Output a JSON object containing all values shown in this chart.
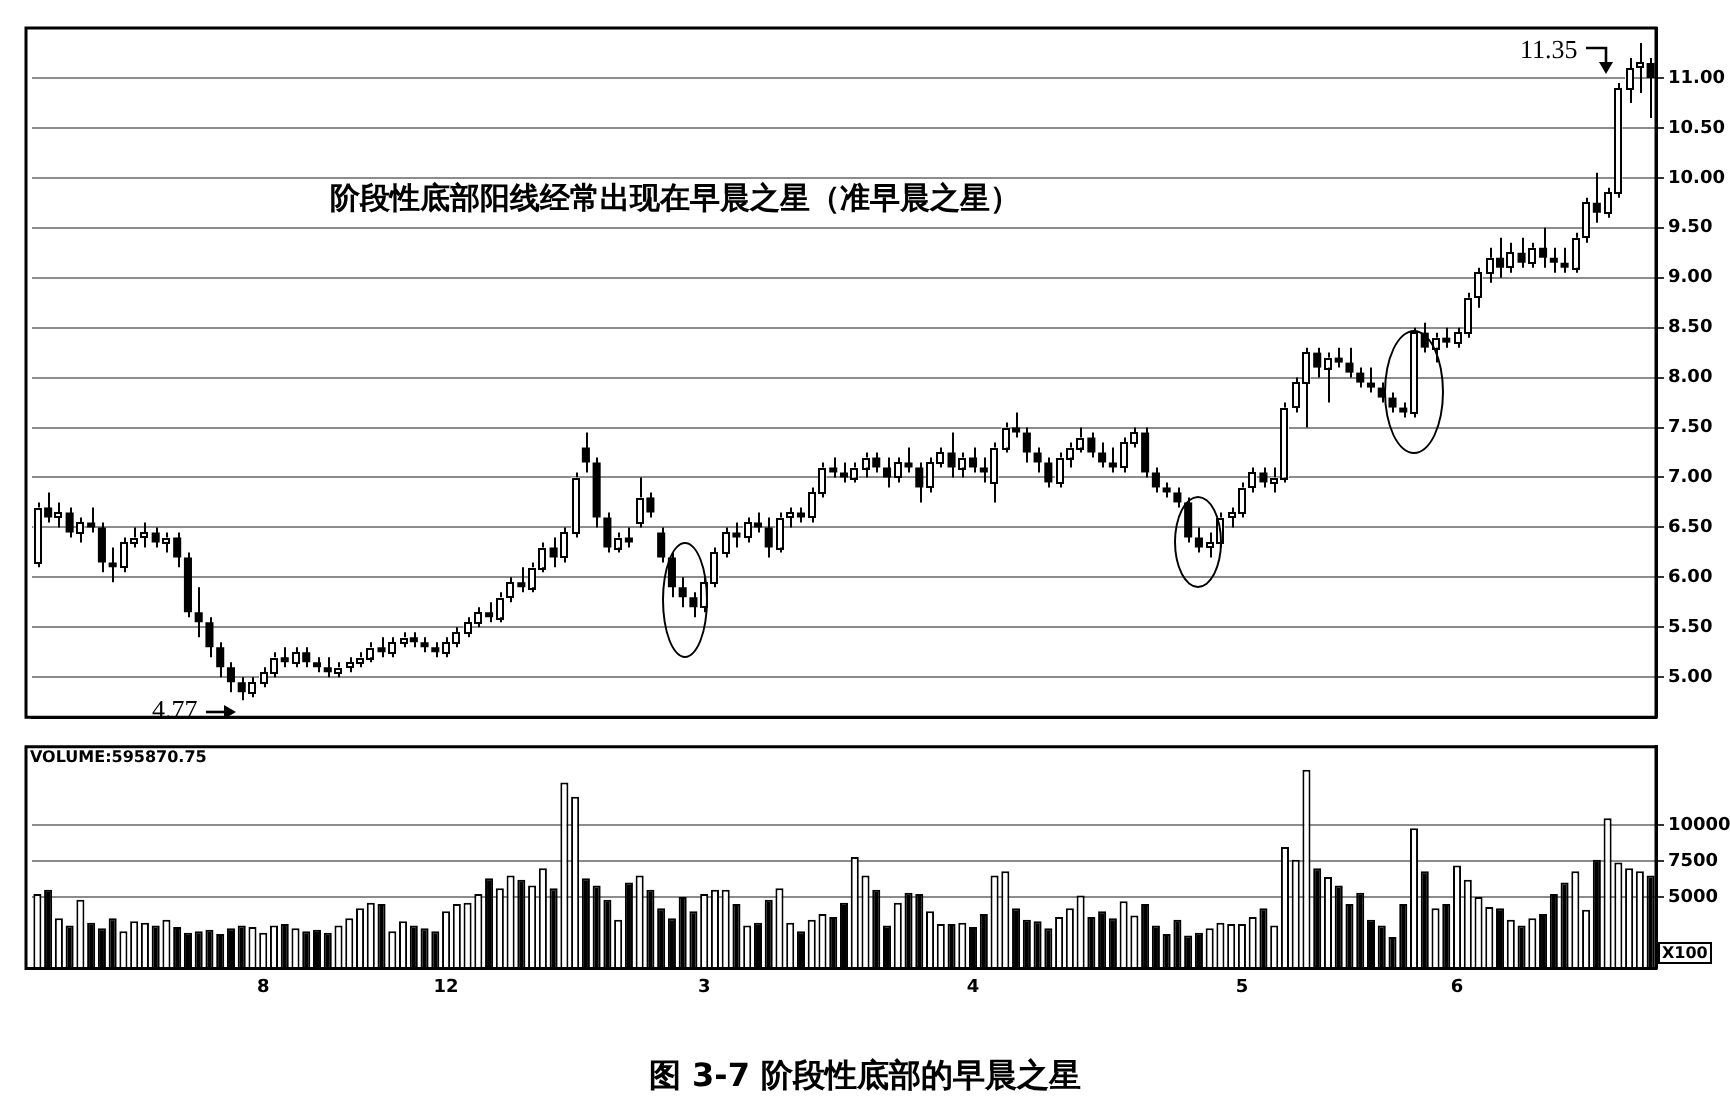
{
  "chart_data": [
    {
      "type": "candlestick",
      "title": "图 3-7  阶段性底部的早晨之星",
      "annotations": [
        "阶段性底部阳线经常出现在早晨之星（准早晨之星）",
        "4.77",
        "11.35"
      ],
      "categories": [
        null,
        null,
        null,
        null,
        null,
        null,
        null,
        null,
        null,
        null,
        null,
        null,
        null,
        null,
        null,
        null,
        null,
        null,
        null,
        null,
        null,
        "8",
        null,
        null,
        null,
        null,
        null,
        null,
        null,
        null,
        null,
        null,
        null,
        null,
        null,
        null,
        null,
        null,
        "12",
        null,
        null,
        null,
        null,
        null,
        null,
        null,
        null,
        null,
        null,
        null,
        null,
        null,
        null,
        null,
        null,
        null,
        null,
        null,
        null,
        null,
        null,
        null,
        "3",
        null,
        null,
        null,
        null,
        null,
        null,
        null,
        null,
        null,
        null,
        null,
        null,
        null,
        null,
        null,
        null,
        null,
        null,
        null,
        null,
        null,
        null,
        null,
        null,
        "4",
        null,
        null,
        null,
        null,
        null,
        null,
        null,
        null,
        null,
        null,
        null,
        null,
        null,
        null,
        null,
        null,
        null,
        null,
        null,
        null,
        null,
        null,
        null,
        null,
        "5",
        null,
        null,
        null,
        null,
        null,
        null,
        null,
        null,
        null,
        null,
        null,
        null,
        null,
        null,
        null,
        null,
        null,
        null,
        null,
        "6",
        null,
        null,
        null,
        null,
        null,
        null,
        null,
        null,
        null,
        null,
        null,
        null,
        null,
        null,
        null,
        null,
        null,
        null
      ],
      "ohlc": [
        [
          6.15,
          6.75,
          6.1,
          6.7
        ],
        [
          6.7,
          6.85,
          6.55,
          6.6
        ],
        [
          6.6,
          6.75,
          6.5,
          6.65
        ],
        [
          6.65,
          6.7,
          6.4,
          6.45
        ],
        [
          6.45,
          6.6,
          6.35,
          6.55
        ],
        [
          6.55,
          6.7,
          6.45,
          6.5
        ],
        [
          6.5,
          6.55,
          6.05,
          6.15
        ],
        [
          6.15,
          6.3,
          5.95,
          6.1
        ],
        [
          6.1,
          6.4,
          6.05,
          6.35
        ],
        [
          6.35,
          6.5,
          6.3,
          6.4
        ],
        [
          6.4,
          6.55,
          6.3,
          6.45
        ],
        [
          6.45,
          6.5,
          6.3,
          6.35
        ],
        [
          6.35,
          6.45,
          6.25,
          6.4
        ],
        [
          6.4,
          6.45,
          6.1,
          6.2
        ],
        [
          6.2,
          6.25,
          5.6,
          5.65
        ],
        [
          5.65,
          5.9,
          5.4,
          5.55
        ],
        [
          5.55,
          5.6,
          5.2,
          5.3
        ],
        [
          5.3,
          5.35,
          5.0,
          5.1
        ],
        [
          5.1,
          5.15,
          4.85,
          4.95
        ],
        [
          4.95,
          5.0,
          4.77,
          4.85
        ],
        [
          4.85,
          5.0,
          4.8,
          4.95
        ],
        [
          4.95,
          5.1,
          4.9,
          5.05
        ],
        [
          5.05,
          5.25,
          5.0,
          5.2
        ],
        [
          5.2,
          5.3,
          5.1,
          5.15
        ],
        [
          5.15,
          5.3,
          5.1,
          5.25
        ],
        [
          5.25,
          5.3,
          5.1,
          5.15
        ],
        [
          5.15,
          5.2,
          5.05,
          5.1
        ],
        [
          5.1,
          5.2,
          5.0,
          5.05
        ],
        [
          5.05,
          5.15,
          5.0,
          5.1
        ],
        [
          5.1,
          5.2,
          5.05,
          5.15
        ],
        [
          5.15,
          5.25,
          5.1,
          5.2
        ],
        [
          5.2,
          5.35,
          5.15,
          5.3
        ],
        [
          5.3,
          5.4,
          5.2,
          5.25
        ],
        [
          5.25,
          5.4,
          5.2,
          5.35
        ],
        [
          5.35,
          5.45,
          5.3,
          5.4
        ],
        [
          5.4,
          5.45,
          5.3,
          5.35
        ],
        [
          5.35,
          5.4,
          5.25,
          5.3
        ],
        [
          5.3,
          5.35,
          5.2,
          5.25
        ],
        [
          5.25,
          5.4,
          5.2,
          5.35
        ],
        [
          5.35,
          5.5,
          5.3,
          5.45
        ],
        [
          5.45,
          5.6,
          5.4,
          5.55
        ],
        [
          5.55,
          5.7,
          5.5,
          5.65
        ],
        [
          5.65,
          5.75,
          5.55,
          5.6
        ],
        [
          5.6,
          5.85,
          5.55,
          5.8
        ],
        [
          5.8,
          6.0,
          5.75,
          5.95
        ],
        [
          5.95,
          6.1,
          5.85,
          5.9
        ],
        [
          5.9,
          6.15,
          5.85,
          6.1
        ],
        [
          6.1,
          6.35,
          6.05,
          6.3
        ],
        [
          6.3,
          6.4,
          6.1,
          6.2
        ],
        [
          6.2,
          6.5,
          6.15,
          6.45
        ],
        [
          6.45,
          7.05,
          6.4,
          7.0
        ],
        [
          7.3,
          7.45,
          7.05,
          7.15
        ],
        [
          7.15,
          7.2,
          6.5,
          6.6
        ],
        [
          6.6,
          6.65,
          6.25,
          6.3
        ],
        [
          6.3,
          6.45,
          6.25,
          6.4
        ],
        [
          6.4,
          6.5,
          6.3,
          6.35
        ],
        [
          6.55,
          7.0,
          6.5,
          6.8
        ],
        [
          6.8,
          6.85,
          6.6,
          6.65
        ],
        [
          6.45,
          6.5,
          6.15,
          6.2
        ],
        [
          6.2,
          6.25,
          5.8,
          5.9
        ],
        [
          5.9,
          6.0,
          5.7,
          5.8
        ],
        [
          5.8,
          5.85,
          5.6,
          5.7
        ],
        [
          5.7,
          6.0,
          5.65,
          5.95
        ],
        [
          5.95,
          6.3,
          5.9,
          6.25
        ],
        [
          6.25,
          6.5,
          6.2,
          6.45
        ],
        [
          6.45,
          6.55,
          6.3,
          6.4
        ],
        [
          6.4,
          6.6,
          6.35,
          6.55
        ],
        [
          6.55,
          6.65,
          6.45,
          6.5
        ],
        [
          6.5,
          6.6,
          6.2,
          6.3
        ],
        [
          6.3,
          6.65,
          6.25,
          6.6
        ],
        [
          6.6,
          6.7,
          6.5,
          6.65
        ],
        [
          6.65,
          6.7,
          6.55,
          6.6
        ],
        [
          6.6,
          6.9,
          6.55,
          6.85
        ],
        [
          6.85,
          7.15,
          6.8,
          7.1
        ],
        [
          7.1,
          7.2,
          7.0,
          7.05
        ],
        [
          7.05,
          7.15,
          6.95,
          7.0
        ],
        [
          7.0,
          7.15,
          6.95,
          7.1
        ],
        [
          7.1,
          7.25,
          7.0,
          7.2
        ],
        [
          7.2,
          7.25,
          7.05,
          7.1
        ],
        [
          7.1,
          7.2,
          6.9,
          7.0
        ],
        [
          7.0,
          7.2,
          6.95,
          7.15
        ],
        [
          7.15,
          7.3,
          7.05,
          7.1
        ],
        [
          7.1,
          7.15,
          6.75,
          6.9
        ],
        [
          6.9,
          7.2,
          6.85,
          7.15
        ],
        [
          7.15,
          7.3,
          7.1,
          7.25
        ],
        [
          7.25,
          7.45,
          7.0,
          7.1
        ],
        [
          7.1,
          7.25,
          7.0,
          7.2
        ],
        [
          7.2,
          7.3,
          7.05,
          7.1
        ],
        [
          7.1,
          7.2,
          6.95,
          7.05
        ],
        [
          6.95,
          7.35,
          6.75,
          7.3
        ],
        [
          7.3,
          7.55,
          7.25,
          7.5
        ],
        [
          7.5,
          7.65,
          7.4,
          7.45
        ],
        [
          7.45,
          7.5,
          7.15,
          7.25
        ],
        [
          7.25,
          7.3,
          7.05,
          7.15
        ],
        [
          7.15,
          7.2,
          6.9,
          6.95
        ],
        [
          6.95,
          7.25,
          6.9,
          7.2
        ],
        [
          7.2,
          7.35,
          7.1,
          7.3
        ],
        [
          7.3,
          7.5,
          7.25,
          7.4
        ],
        [
          7.4,
          7.45,
          7.2,
          7.25
        ],
        [
          7.25,
          7.35,
          7.1,
          7.15
        ],
        [
          7.15,
          7.3,
          7.05,
          7.1
        ],
        [
          7.1,
          7.4,
          7.05,
          7.35
        ],
        [
          7.35,
          7.5,
          7.3,
          7.45
        ],
        [
          7.45,
          7.5,
          7.0,
          7.05
        ],
        [
          7.05,
          7.1,
          6.85,
          6.9
        ],
        [
          6.9,
          6.95,
          6.8,
          6.85
        ],
        [
          6.85,
          6.9,
          6.7,
          6.75
        ],
        [
          6.75,
          6.8,
          6.35,
          6.4
        ],
        [
          6.4,
          6.5,
          6.25,
          6.3
        ],
        [
          6.3,
          6.45,
          6.2,
          6.35
        ],
        [
          6.35,
          6.65,
          6.3,
          6.6
        ],
        [
          6.6,
          6.7,
          6.5,
          6.65
        ],
        [
          6.65,
          6.95,
          6.6,
          6.9
        ],
        [
          6.9,
          7.1,
          6.85,
          7.05
        ],
        [
          7.05,
          7.1,
          6.9,
          6.95
        ],
        [
          6.95,
          7.1,
          6.85,
          7.0
        ],
        [
          7.0,
          7.75,
          6.95,
          7.7
        ],
        [
          7.7,
          8.0,
          7.65,
          7.95
        ],
        [
          7.95,
          8.3,
          7.5,
          8.25
        ],
        [
          8.25,
          8.3,
          8.0,
          8.1
        ],
        [
          8.1,
          8.25,
          7.75,
          8.2
        ],
        [
          8.2,
          8.3,
          8.1,
          8.15
        ],
        [
          8.15,
          8.3,
          8.0,
          8.05
        ],
        [
          8.05,
          8.1,
          7.9,
          7.95
        ],
        [
          7.95,
          8.1,
          7.85,
          7.9
        ],
        [
          7.9,
          7.95,
          7.75,
          7.8
        ],
        [
          7.8,
          7.85,
          7.65,
          7.7
        ],
        [
          7.7,
          7.75,
          7.6,
          7.65
        ],
        [
          7.65,
          8.5,
          7.6,
          8.45
        ],
        [
          8.45,
          8.55,
          8.25,
          8.3
        ],
        [
          8.3,
          8.45,
          8.15,
          8.4
        ],
        [
          8.4,
          8.5,
          8.3,
          8.35
        ],
        [
          8.35,
          8.5,
          8.3,
          8.45
        ],
        [
          8.45,
          8.85,
          8.4,
          8.8
        ],
        [
          8.8,
          9.1,
          8.7,
          9.05
        ],
        [
          9.05,
          9.3,
          8.95,
          9.2
        ],
        [
          9.2,
          9.4,
          9.0,
          9.1
        ],
        [
          9.1,
          9.35,
          9.05,
          9.25
        ],
        [
          9.25,
          9.4,
          9.1,
          9.15
        ],
        [
          9.15,
          9.35,
          9.1,
          9.3
        ],
        [
          9.3,
          9.5,
          9.1,
          9.2
        ],
        [
          9.2,
          9.3,
          9.05,
          9.15
        ],
        [
          9.15,
          9.3,
          9.05,
          9.1
        ],
        [
          9.1,
          9.45,
          9.05,
          9.4
        ],
        [
          9.4,
          9.8,
          9.35,
          9.75
        ],
        [
          9.75,
          10.05,
          9.55,
          9.65
        ],
        [
          9.65,
          9.9,
          9.6,
          9.85
        ],
        [
          9.85,
          10.95,
          9.8,
          10.9
        ],
        [
          10.9,
          11.2,
          10.75,
          11.1
        ],
        [
          11.1,
          11.35,
          10.85,
          11.15
        ],
        [
          11.15,
          11.2,
          10.6,
          11.0
        ]
      ],
      "ylim": [
        4.6,
        11.5
      ],
      "yticks": [
        {
          "value": 5,
          "label": "5.00"
        },
        {
          "value": 5.5,
          "label": "5.50"
        },
        {
          "value": 6,
          "label": "6.00"
        },
        {
          "value": 6.5,
          "label": "6.50"
        },
        {
          "value": 7,
          "label": "7.00"
        },
        {
          "value": 7.5,
          "label": "7.50"
        },
        {
          "value": 8,
          "label": "8.00"
        },
        {
          "value": 8.5,
          "label": "8.50"
        },
        {
          "value": 9,
          "label": "9.00"
        },
        {
          "value": 9.5,
          "label": "9.50"
        },
        {
          "value": 10,
          "label": "10.00"
        },
        {
          "value": 10.5,
          "label": "10.50"
        },
        {
          "value": 11,
          "label": "11.00"
        }
      ],
      "grid": "y",
      "tick_labels": "y"
    },
    {
      "type": "bar",
      "annotations": [
        "VOLUME:595870.75",
        "X100"
      ],
      "categories": [
        null,
        null,
        null,
        null,
        null,
        null,
        null,
        null,
        null,
        null,
        null,
        null,
        null,
        null,
        null,
        null,
        null,
        null,
        null,
        null,
        null,
        "8",
        null,
        null,
        null,
        null,
        null,
        null,
        null,
        null,
        null,
        null,
        null,
        null,
        null,
        null,
        null,
        null,
        "12",
        null,
        null,
        null,
        null,
        null,
        null,
        null,
        null,
        null,
        null,
        null,
        null,
        null,
        null,
        null,
        null,
        null,
        null,
        null,
        null,
        null,
        null,
        null,
        "3",
        null,
        null,
        null,
        null,
        null,
        null,
        null,
        null,
        null,
        null,
        null,
        null,
        null,
        null,
        null,
        null,
        null,
        null,
        null,
        null,
        null,
        null,
        null,
        null,
        "4",
        null,
        null,
        null,
        null,
        null,
        null,
        null,
        null,
        null,
        null,
        null,
        null,
        null,
        null,
        null,
        null,
        null,
        null,
        null,
        null,
        null,
        null,
        null,
        null,
        "5",
        null,
        null,
        null,
        null,
        null,
        null,
        null,
        null,
        null,
        null,
        null,
        null,
        null,
        null,
        null,
        null,
        null,
        null,
        null,
        "6",
        null,
        null,
        null,
        null,
        null,
        null,
        null,
        null,
        null,
        null,
        null,
        null,
        null,
        null,
        null,
        null,
        null,
        null
      ],
      "values": [
        5200,
        5500,
        3500,
        3000,
        4800,
        3200,
        2800,
        3500,
        2600,
        3300,
        3200,
        3000,
        3400,
        2900,
        2500,
        2600,
        2700,
        2400,
        2800,
        3000,
        2900,
        2500,
        3000,
        3100,
        2800,
        2600,
        2700,
        2500,
        3000,
        3500,
        4200,
        4600,
        4500,
        2600,
        3300,
        3000,
        2800,
        2600,
        4000,
        4500,
        4600,
        5200,
        6300,
        5600,
        6500,
        6200,
        5800,
        7000,
        5600,
        13000,
        12000,
        6300,
        5800,
        4800,
        3400,
        6000,
        6500,
        5500,
        4200,
        3500,
        5000,
        4000,
        5200,
        5500,
        5500,
        4500,
        3000,
        3200,
        4800,
        5600,
        3200,
        2600,
        3400,
        3800,
        3600,
        4600,
        7800,
        6500,
        5500,
        3000,
        4600,
        5300,
        5200,
        4000,
        3100,
        3100,
        3200,
        2900,
        3800,
        6500,
        6800,
        4200,
        3400,
        3300,
        2800,
        3600,
        4200,
        5100,
        3600,
        4000,
        3500,
        4700,
        3700,
        4500,
        3000,
        2400,
        3400,
        2300,
        2500,
        2800,
        3200,
        3100,
        3100,
        3600,
        4200,
        3000,
        8500,
        7600,
        13900,
        7000,
        6400,
        5800,
        4500,
        5300,
        3400,
        3000,
        2200,
        4500,
        9800,
        6800,
        4200,
        4500,
        7200,
        6200,
        5000,
        4300,
        4200,
        3400,
        3000,
        3500,
        3800,
        5200,
        6000,
        6800,
        4100,
        7600,
        10500,
        7400,
        7000,
        6800,
        6500
      ],
      "colors": [
        "#ffffff",
        "#000000",
        "#ffffff",
        "#000000",
        "#ffffff",
        "#000000",
        "#000000",
        "#000000",
        "#ffffff",
        "#ffffff",
        "#ffffff",
        "#000000",
        "#ffffff",
        "#000000",
        "#000000",
        "#000000",
        "#000000",
        "#000000",
        "#000000",
        "#000000",
        "#ffffff",
        "#ffffff",
        "#ffffff",
        "#000000",
        "#ffffff",
        "#000000",
        "#000000",
        "#000000",
        "#ffffff",
        "#ffffff",
        "#ffffff",
        "#ffffff",
        "#000000",
        "#ffffff",
        "#ffffff",
        "#000000",
        "#000000",
        "#000000",
        "#ffffff",
        "#ffffff",
        "#ffffff",
        "#ffffff",
        "#000000",
        "#ffffff",
        "#ffffff",
        "#000000",
        "#ffffff",
        "#ffffff",
        "#000000",
        "#ffffff",
        "#ffffff",
        "#000000",
        "#000000",
        "#000000",
        "#ffffff",
        "#000000",
        "#ffffff",
        "#000000",
        "#000000",
        "#000000",
        "#000000",
        "#000000",
        "#ffffff",
        "#ffffff",
        "#ffffff",
        "#000000",
        "#ffffff",
        "#000000",
        "#000000",
        "#ffffff",
        "#ffffff",
        "#000000",
        "#ffffff",
        "#ffffff",
        "#000000",
        "#000000",
        "#ffffff",
        "#ffffff",
        "#000000",
        "#000000",
        "#ffffff",
        "#000000",
        "#000000",
        "#ffffff",
        "#ffffff",
        "#000000",
        "#ffffff",
        "#000000",
        "#000000",
        "#ffffff",
        "#ffffff",
        "#000000",
        "#000000",
        "#000000",
        "#000000",
        "#ffffff",
        "#ffffff",
        "#ffffff",
        "#000000",
        "#000000",
        "#000000",
        "#ffffff",
        "#ffffff",
        "#000000",
        "#000000",
        "#000000",
        "#000000",
        "#000000",
        "#000000",
        "#ffffff",
        "#ffffff",
        "#ffffff",
        "#ffffff",
        "#ffffff",
        "#000000",
        "#ffffff",
        "#ffffff",
        "#ffffff",
        "#ffffff",
        "#000000",
        "#ffffff",
        "#000000",
        "#000000",
        "#000000",
        "#000000",
        "#000000",
        "#000000",
        "#000000",
        "#ffffff",
        "#000000",
        "#ffffff",
        "#000000",
        "#ffffff",
        "#ffffff",
        "#ffffff",
        "#ffffff",
        "#000000",
        "#ffffff",
        "#000000",
        "#ffffff",
        "#000000",
        "#000000",
        "#000000",
        "#ffffff",
        "#ffffff",
        "#000000",
        "#ffffff",
        "#ffffff",
        "#ffffff",
        "#ffffff",
        "#000000"
      ],
      "ylim": [
        0,
        15500
      ],
      "yticks": [
        5000,
        7500,
        10000
      ],
      "grid": "y"
    }
  ]
}
